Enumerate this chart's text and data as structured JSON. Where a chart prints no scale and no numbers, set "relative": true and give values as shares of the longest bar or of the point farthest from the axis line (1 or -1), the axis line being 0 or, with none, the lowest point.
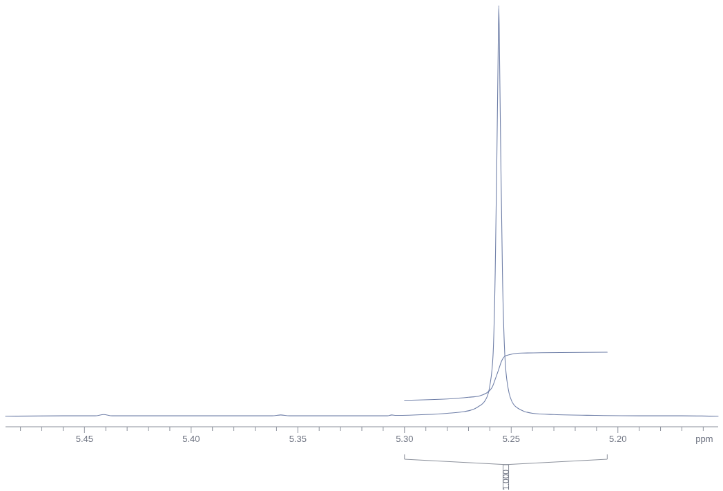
{
  "chart_data": {
    "type": "line",
    "xlabel": "ppm",
    "relative": true,
    "xlim": [
      5.487,
      5.153
    ],
    "xticks": [
      {
        "value": 5.48,
        "label": null
      },
      {
        "value": 5.47,
        "label": null
      },
      {
        "value": 5.46,
        "label": null
      },
      5.45,
      {
        "value": 5.44,
        "label": null
      },
      {
        "value": 5.43,
        "label": null
      },
      {
        "value": 5.42,
        "label": null
      },
      {
        "value": 5.41,
        "label": null
      },
      {
        "value": 5.4,
        "label": "5.40"
      },
      {
        "value": 5.39,
        "label": null
      },
      {
        "value": 5.38,
        "label": null
      },
      {
        "value": 5.37,
        "label": null
      },
      {
        "value": 5.36,
        "label": null
      },
      5.35,
      {
        "value": 5.34,
        "label": null
      },
      {
        "value": 5.33,
        "label": null
      },
      {
        "value": 5.32,
        "label": null
      },
      {
        "value": 5.31,
        "label": null
      },
      {
        "value": 5.3,
        "label": "5.30"
      },
      {
        "value": 5.29,
        "label": null
      },
      {
        "value": 5.28,
        "label": null
      },
      {
        "value": 5.27,
        "label": null
      },
      {
        "value": 5.26,
        "label": null
      },
      5.25,
      {
        "value": 5.24,
        "label": null
      },
      {
        "value": 5.23,
        "label": null
      },
      {
        "value": 5.22,
        "label": null
      },
      {
        "value": 5.21,
        "label": null
      },
      {
        "value": 5.2,
        "label": "5.20"
      },
      {
        "value": 5.19,
        "label": null
      },
      {
        "value": 5.18,
        "label": null
      },
      {
        "value": 5.17,
        "label": null
      },
      {
        "value": 5.16,
        "label": null
      }
    ],
    "series": [
      {
        "color": "#6f7fa8",
        "x": [
          5.487,
          5.46,
          5.445,
          5.441,
          5.437,
          5.4,
          5.362,
          5.358,
          5.354,
          5.32,
          5.308,
          5.306,
          5.304,
          5.29,
          5.28,
          5.272,
          5.266,
          5.262,
          5.26,
          5.2585,
          5.2575,
          5.2568,
          5.2562,
          5.2558,
          5.2554,
          5.2548,
          5.2541,
          5.253,
          5.2515,
          5.249,
          5.245,
          5.24,
          5.23,
          5.21,
          5.19,
          5.17,
          5.153
        ],
        "values": [
          0.025,
          0.026,
          0.026,
          0.029,
          0.026,
          0.026,
          0.026,
          0.028,
          0.026,
          0.026,
          0.026,
          0.028,
          0.027,
          0.029,
          0.032,
          0.036,
          0.046,
          0.064,
          0.098,
          0.171,
          0.366,
          0.61,
          0.854,
          1,
          0.854,
          0.61,
          0.366,
          0.171,
          0.093,
          0.054,
          0.039,
          0.032,
          0.029,
          0.027,
          0.026,
          0.026,
          0.025
        ]
      },
      {
        "color": "#6f7fa8",
        "x": [
          5.3,
          5.28,
          5.27,
          5.265,
          5.262,
          5.259,
          5.2572,
          5.2558,
          5.2545,
          5.2525,
          5.245,
          5.205
        ],
        "values": [
          0.063,
          0.066,
          0.07,
          0.073,
          0.079,
          0.093,
          0.117,
          0.137,
          0.156,
          0.169,
          0.175,
          0.177
        ]
      }
    ],
    "annotations": [
      "1.000"
    ]
  }
}
